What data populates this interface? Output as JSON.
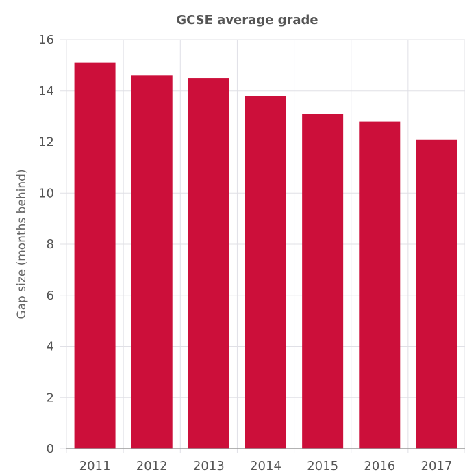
{
  "chart_data": {
    "type": "bar",
    "title": "GCSE average grade",
    "xlabel": "",
    "ylabel": "Gap size (months behind)",
    "categories": [
      "2011",
      "2012",
      "2013",
      "2014",
      "2015",
      "2016",
      "2017"
    ],
    "values": [
      15.1,
      14.6,
      14.5,
      13.8,
      13.1,
      12.8,
      12.1
    ],
    "ylim": [
      0,
      16
    ],
    "yticks": [
      "0",
      "2",
      "4",
      "6",
      "8",
      "10",
      "12",
      "14",
      "16"
    ],
    "grid": true,
    "bar_color": "#cc0f3a",
    "grid_color": "#e0e0e6",
    "axis_color": "#999999"
  }
}
